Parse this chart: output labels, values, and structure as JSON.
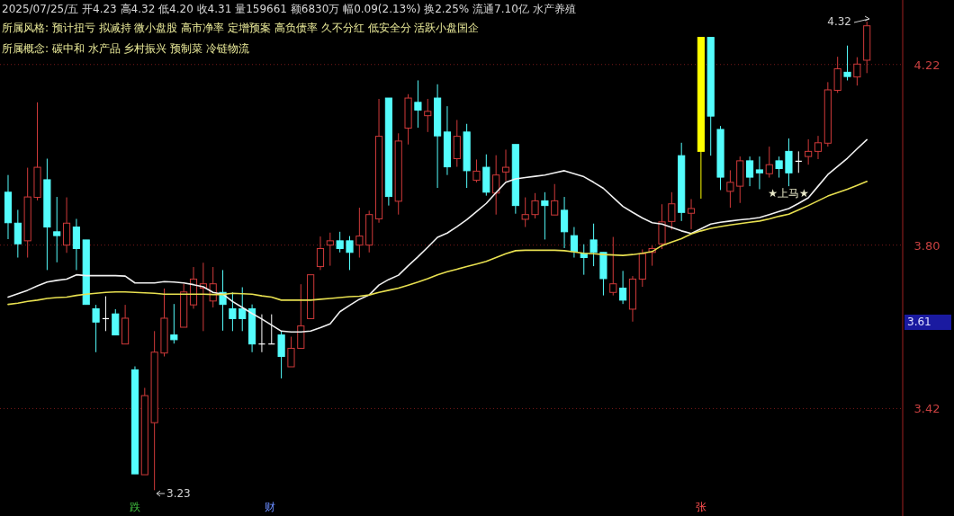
{
  "chart_data": {
    "type": "candlestick",
    "title": "2025/07/25/五 开4.23 高4.32 低4.20 收4.31 量159661 额6830万 幅0.09(2.13%) 换2.25% 流通7.10亿 水产养殖",
    "subtitle": "所属风格: 预计扭亏 拟减持 微小盘股 高市净率 定增预案 高负债率 久不分红 低安全分 活跃小盘国企",
    "categories": [
      null,
      null,
      null,
      null,
      null,
      null,
      null,
      null,
      null,
      null,
      null,
      null,
      null,
      null,
      null,
      null,
      null,
      null,
      null,
      null,
      null,
      null,
      null,
      null,
      null,
      null,
      null,
      null,
      null,
      null,
      null,
      null,
      null,
      null,
      null,
      null,
      null,
      null,
      null,
      null,
      null,
      null,
      null,
      null,
      null,
      null,
      null,
      null,
      null,
      null,
      null,
      null,
      null,
      null,
      null,
      null,
      null,
      null,
      null,
      null,
      null,
      null,
      null,
      null,
      null,
      null,
      null,
      null,
      null,
      null,
      null,
      null,
      null,
      null,
      null,
      null,
      null,
      null,
      null,
      null,
      null,
      null,
      null,
      null,
      null,
      null,
      null,
      null,
      null
    ],
    "ohlc": [
      [
        3.923,
        3.963,
        3.814,
        3.852
      ],
      [
        3.851,
        3.882,
        3.771,
        3.803
      ],
      [
        3.81,
        3.98,
        3.771,
        3.912
      ],
      [
        3.911,
        4.132,
        3.904,
        3.981
      ],
      [
        3.952,
        4.001,
        3.742,
        3.842
      ],
      [
        3.831,
        3.912,
        3.76,
        3.822
      ],
      [
        3.8,
        3.911,
        3.782,
        3.851
      ],
      [
        3.842,
        3.861,
        3.742,
        3.792
      ],
      [
        3.812,
        3.812,
        3.662,
        3.662
      ],
      [
        3.652,
        3.661,
        3.551,
        3.621
      ],
      [
        3.629,
        3.681,
        3.6,
        3.629
      ],
      [
        3.64,
        3.651,
        3.591,
        3.591
      ],
      [
        3.57,
        3.661,
        3.57,
        3.63
      ],
      [
        3.51,
        3.518,
        3.268,
        3.268
      ],
      [
        3.266,
        3.468,
        3.266,
        3.45
      ],
      [
        3.387,
        3.6,
        3.23,
        3.551
      ],
      [
        3.549,
        3.699,
        3.541,
        3.63
      ],
      [
        3.591,
        3.663,
        3.571,
        3.58
      ],
      [
        3.609,
        3.71,
        3.609,
        3.691
      ],
      [
        3.661,
        3.749,
        3.652,
        3.721
      ],
      [
        3.7,
        3.759,
        3.6,
        3.71
      ],
      [
        3.67,
        3.749,
        3.655,
        3.71
      ],
      [
        3.69,
        3.742,
        3.601,
        3.662
      ],
      [
        3.652,
        3.69,
        3.6,
        3.629
      ],
      [
        3.652,
        3.702,
        3.6,
        3.629
      ],
      [
        3.652,
        3.662,
        3.551,
        3.57
      ],
      [
        3.57,
        3.639,
        3.551,
        3.57
      ],
      [
        3.57,
        3.639,
        3.57,
        3.57
      ],
      [
        3.591,
        3.6,
        3.49,
        3.541
      ],
      [
        3.517,
        3.587,
        3.517,
        3.56
      ],
      [
        3.56,
        3.709,
        3.56,
        3.612
      ],
      [
        3.629,
        3.731,
        3.629,
        3.731
      ],
      [
        3.75,
        3.82,
        3.742,
        3.792
      ],
      [
        3.8,
        3.829,
        3.752,
        3.81
      ],
      [
        3.81,
        3.831,
        3.783,
        3.792
      ],
      [
        3.81,
        3.821,
        3.742,
        3.783
      ],
      [
        3.8,
        3.887,
        3.771,
        3.821
      ],
      [
        3.8,
        3.88,
        3.783,
        3.871
      ],
      [
        3.861,
        4.14,
        3.852,
        4.053
      ],
      [
        4.142,
        4.142,
        3.892,
        3.913
      ],
      [
        3.902,
        4.06,
        3.871,
        4.042
      ],
      [
        4.072,
        4.151,
        4.034,
        4.142
      ],
      [
        4.132,
        4.183,
        4.073,
        4.114
      ],
      [
        4.101,
        4.14,
        4.063,
        4.111
      ],
      [
        4.142,
        4.174,
        3.933,
        4.054
      ],
      [
        4.063,
        4.123,
        3.963,
        3.982
      ],
      [
        4.001,
        4.091,
        3.982,
        4.053
      ],
      [
        4.063,
        4.082,
        3.933,
        3.973
      ],
      [
        3.951,
        3.999,
        3.946,
        3.972
      ],
      [
        3.981,
        4.011,
        3.915,
        3.923
      ],
      [
        3.921,
        4.009,
        3.871,
        3.963
      ],
      [
        3.97,
        4.022,
        3.949,
        3.981
      ],
      [
        4.034,
        4.034,
        3.873,
        3.892
      ],
      [
        3.86,
        3.911,
        3.842,
        3.871
      ],
      [
        3.871,
        3.921,
        3.862,
        3.903
      ],
      [
        3.903,
        3.923,
        3.813,
        3.892
      ],
      [
        3.87,
        3.942,
        3.87,
        3.903
      ],
      [
        3.881,
        3.912,
        3.793,
        3.831
      ],
      [
        3.822,
        3.842,
        3.771,
        3.785
      ],
      [
        3.78,
        3.802,
        3.731,
        3.771
      ],
      [
        3.812,
        3.85,
        3.751,
        3.783
      ],
      [
        3.783,
        3.783,
        3.683,
        3.722
      ],
      [
        3.69,
        3.819,
        3.683,
        3.71
      ],
      [
        3.7,
        3.74,
        3.663,
        3.672
      ],
      [
        3.651,
        3.728,
        3.622,
        3.721
      ],
      [
        3.721,
        3.79,
        3.703,
        3.78
      ],
      [
        3.783,
        3.799,
        3.752,
        3.792
      ],
      [
        3.803,
        3.895,
        3.791,
        3.854
      ],
      [
        3.855,
        3.923,
        3.836,
        3.896
      ],
      [
        4.008,
        4.038,
        3.856,
        3.876
      ],
      [
        3.874,
        3.907,
        3.837,
        3.885
      ],
      [
        4.018,
        4.283,
        3.908,
        4.283
      ],
      [
        4.283,
        4.283,
        4.008,
        4.1
      ],
      [
        4.069,
        4.077,
        3.928,
        3.958
      ],
      [
        3.925,
        3.974,
        3.887,
        3.946
      ],
      [
        3.937,
        4.006,
        3.898,
        3.996
      ],
      [
        3.996,
        4.006,
        3.937,
        3.958
      ],
      [
        3.975,
        4.006,
        3.93,
        3.968
      ],
      [
        3.966,
        4.029,
        3.957,
        3.987
      ],
      [
        3.996,
        4.006,
        3.957,
        3.978
      ],
      [
        4.018,
        4.048,
        3.937,
        3.968
      ],
      [
        3.995,
        4.018,
        3.968,
        3.995
      ],
      [
        4.006,
        4.046,
        3.987,
        4.018
      ],
      [
        4.018,
        4.054,
        4.0,
        4.038
      ],
      [
        4.037,
        4.179,
        4.029,
        4.161
      ],
      [
        4.16,
        4.238,
        4.154,
        4.21
      ],
      [
        4.202,
        4.264,
        4.183,
        4.192
      ],
      [
        4.191,
        4.237,
        4.171,
        4.221
      ],
      [
        4.23,
        4.32,
        4.2,
        4.31
      ]
    ],
    "colors": [
      "#54fcfc",
      "#54fcfc",
      "#d03a3a",
      "#d03a3a",
      "#54fcfc",
      "#54fcfc",
      "#d03a3a",
      "#54fcfc",
      "#54fcfc",
      "#54fcfc",
      "#ffffff",
      "#54fcfc",
      "#d03a3a",
      "#54fcfc",
      "#d03a3a",
      "#d03a3a",
      "#d03a3a",
      "#54fcfc",
      "#d03a3a",
      "#d03a3a",
      "#d03a3a",
      "#d03a3a",
      "#54fcfc",
      "#54fcfc",
      "#54fcfc",
      "#54fcfc",
      "#ffffff",
      "#ffffff",
      "#54fcfc",
      "#d03a3a",
      "#d03a3a",
      "#d03a3a",
      "#d03a3a",
      "#d03a3a",
      "#54fcfc",
      "#54fcfc",
      "#d03a3a",
      "#d03a3a",
      "#d03a3a",
      "#54fcfc",
      "#d03a3a",
      "#d03a3a",
      "#54fcfc",
      "#d03a3a",
      "#54fcfc",
      "#54fcfc",
      "#d03a3a",
      "#54fcfc",
      "#d03a3a",
      "#54fcfc",
      "#d03a3a",
      "#d03a3a",
      "#54fcfc",
      "#d03a3a",
      "#d03a3a",
      "#54fcfc",
      "#d03a3a",
      "#54fcfc",
      "#54fcfc",
      "#54fcfc",
      "#54fcfc",
      "#54fcfc",
      "#d03a3a",
      "#54fcfc",
      "#d03a3a",
      "#d03a3a",
      "#d03a3a",
      "#d03a3a",
      "#d03a3a",
      "#54fcfc",
      "#d03a3a",
      "#ffff00",
      "#54fcfc",
      "#54fcfc",
      "#d03a3a",
      "#d03a3a",
      "#54fcfc",
      "#54fcfc",
      "#d03a3a",
      "#54fcfc",
      "#54fcfc",
      "#ffffff",
      "#d03a3a",
      "#d03a3a",
      "#d03a3a",
      "#d03a3a",
      "#54fcfc",
      "#d03a3a",
      "#d03a3a"
    ],
    "series": [
      {
        "type": "line",
        "color": "#f0f0f0",
        "values": [
          3.679,
          3.687,
          3.695,
          3.705,
          3.714,
          3.718,
          3.721,
          3.731,
          3.729,
          3.729,
          3.729,
          3.729,
          3.728,
          3.712,
          3.712,
          3.712,
          3.715,
          3.714,
          3.712,
          3.708,
          3.703,
          3.69,
          3.686,
          3.669,
          3.655,
          3.641,
          3.628,
          3.614,
          3.6,
          3.598,
          3.598,
          3.6,
          3.608,
          3.617,
          3.645,
          3.66,
          3.674,
          3.684,
          3.707,
          3.72,
          3.73,
          3.752,
          3.773,
          3.795,
          3.818,
          3.828,
          3.843,
          3.859,
          3.878,
          3.897,
          3.922,
          3.946,
          3.954,
          3.957,
          3.96,
          3.963,
          3.968,
          3.973,
          3.966,
          3.959,
          3.946,
          3.932,
          3.911,
          3.89,
          3.876,
          3.863,
          3.852,
          3.849,
          3.841,
          3.833,
          3.827,
          3.838,
          3.849,
          3.853,
          3.856,
          3.859,
          3.861,
          3.864,
          3.871,
          3.878,
          3.885,
          3.897,
          3.91,
          3.937,
          3.964,
          3.983,
          4.002,
          4.024,
          4.045
        ]
      },
      {
        "type": "line",
        "color": "#e8e050",
        "values": [
          3.662,
          3.665,
          3.669,
          3.672,
          3.676,
          3.678,
          3.679,
          3.683,
          3.686,
          3.688,
          3.69,
          3.691,
          3.691,
          3.69,
          3.689,
          3.688,
          3.686,
          3.686,
          3.686,
          3.686,
          3.686,
          3.685,
          3.685,
          3.688,
          3.687,
          3.686,
          3.682,
          3.679,
          3.672,
          3.672,
          3.672,
          3.672,
          3.674,
          3.676,
          3.678,
          3.68,
          3.681,
          3.684,
          3.69,
          3.695,
          3.7,
          3.707,
          3.714,
          3.722,
          3.731,
          3.738,
          3.744,
          3.75,
          3.756,
          3.762,
          3.771,
          3.78,
          3.787,
          3.788,
          3.788,
          3.788,
          3.788,
          3.787,
          3.784,
          3.781,
          3.78,
          3.778,
          3.777,
          3.776,
          3.778,
          3.781,
          3.785,
          3.799,
          3.807,
          3.815,
          3.826,
          3.833,
          3.839,
          3.843,
          3.847,
          3.85,
          3.853,
          3.856,
          3.861,
          3.867,
          3.872,
          3.882,
          3.892,
          3.903,
          3.914,
          3.922,
          3.93,
          3.939,
          3.948
        ]
      }
    ],
    "ylim": [
      3.17,
      4.37
    ],
    "yticks": [
      {
        "value": 3.42,
        "label": "3.42"
      },
      {
        "value": 3.8,
        "label": "3.80"
      },
      {
        "value": 4.22,
        "label": "4.22"
      }
    ],
    "grid": "y",
    "tick_labels": "y",
    "annotations": [
      "所属概念: 碳中和 水产品 乡村振兴 预制菜 冷链物流",
      "★上马★",
      "跌",
      "财",
      "张",
      "4.32",
      "3.23",
      "3.61"
    ]
  }
}
